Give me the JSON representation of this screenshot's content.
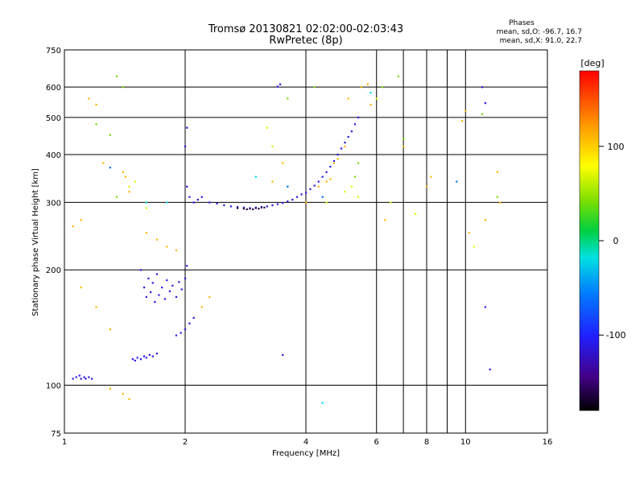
{
  "chart_data": {
    "type": "scatter",
    "title": "Tromsø 20130821 02:02:00-02:03:43",
    "subtitle": "RwPretec (8p)",
    "phase_stats": {
      "heading": "Phases",
      "line1": "mean, sd,O: -96.7, 16.7",
      "line2": "mean, sd,X:  91.0, 22.7"
    },
    "xlabel": "Frequency [MHz]",
    "ylabel": "Stationary phase Virtual Height [km]",
    "xscale": "log",
    "yscale": "log",
    "xlim": [
      1,
      16
    ],
    "ylim": [
      75,
      750
    ],
    "x_ticks": [
      1,
      2,
      4,
      6,
      8,
      10,
      16
    ],
    "x_tick_labels": [
      "1",
      "2",
      "4",
      "6",
      "8",
      "10",
      "16"
    ],
    "x_minor_ticks": [
      7,
      9
    ],
    "y_ticks": [
      75,
      100,
      200,
      300,
      400,
      500,
      600,
      750
    ],
    "y_tick_labels": [
      "75",
      "100",
      "200",
      "300",
      "400",
      "500",
      "600",
      "750"
    ],
    "grid": true,
    "colorbar": {
      "label": "[deg]",
      "min": -180,
      "max": 180,
      "ticks": [
        100,
        0,
        -100
      ],
      "tick_labels": [
        "100",
        "0",
        "-100"
      ]
    },
    "series": [
      {
        "color_deg": -110,
        "points": [
          [
            1.05,
            104
          ],
          [
            1.07,
            105
          ],
          [
            1.09,
            106
          ],
          [
            1.1,
            104
          ],
          [
            1.12,
            105
          ],
          [
            1.13,
            104
          ],
          [
            1.15,
            105
          ],
          [
            1.17,
            104
          ],
          [
            1.48,
            117
          ],
          [
            1.5,
            116
          ],
          [
            1.52,
            118
          ],
          [
            1.55,
            117
          ],
          [
            1.58,
            119
          ],
          [
            1.6,
            118
          ],
          [
            1.63,
            120
          ],
          [
            1.66,
            119
          ],
          [
            1.7,
            121
          ],
          [
            1.55,
            200
          ],
          [
            1.58,
            180
          ],
          [
            1.6,
            170
          ],
          [
            1.62,
            190
          ],
          [
            1.64,
            175
          ],
          [
            1.66,
            185
          ],
          [
            1.68,
            165
          ],
          [
            1.7,
            195
          ],
          [
            1.72,
            172
          ],
          [
            1.75,
            180
          ],
          [
            1.78,
            168
          ],
          [
            1.8,
            188
          ],
          [
            1.83,
            176
          ],
          [
            1.86,
            182
          ],
          [
            1.9,
            170
          ],
          [
            1.93,
            186
          ],
          [
            1.96,
            178
          ],
          [
            2.0,
            190
          ],
          [
            2.02,
            205
          ],
          [
            1.9,
            135
          ],
          [
            1.95,
            137
          ],
          [
            2.0,
            140
          ],
          [
            2.05,
            145
          ],
          [
            2.1,
            150
          ],
          [
            2.02,
            330
          ],
          [
            2.05,
            310
          ],
          [
            2.1,
            300
          ],
          [
            2.15,
            305
          ],
          [
            2.2,
            310
          ],
          [
            2.3,
            300
          ],
          [
            2.4,
            298
          ],
          [
            2.5,
            295
          ],
          [
            2.6,
            293
          ],
          [
            2.7,
            292
          ],
          [
            2.8,
            291
          ],
          [
            2.9,
            290
          ],
          [
            3.0,
            291
          ],
          [
            3.1,
            292
          ],
          [
            3.2,
            293
          ],
          [
            3.3,
            295
          ],
          [
            3.4,
            297
          ],
          [
            3.5,
            299
          ],
          [
            3.6,
            302
          ],
          [
            3.7,
            305
          ],
          [
            3.8,
            310
          ],
          [
            3.9,
            315
          ],
          [
            4.0,
            318
          ],
          [
            4.1,
            325
          ],
          [
            4.2,
            332
          ],
          [
            4.3,
            340
          ],
          [
            4.4,
            350
          ],
          [
            4.5,
            360
          ],
          [
            4.6,
            372
          ],
          [
            4.7,
            385
          ],
          [
            4.8,
            400
          ],
          [
            4.9,
            415
          ],
          [
            5.0,
            430
          ],
          [
            5.1,
            445
          ],
          [
            5.2,
            460
          ],
          [
            5.3,
            480
          ],
          [
            5.4,
            500
          ],
          [
            2.0,
            420
          ],
          [
            2.02,
            470
          ],
          [
            3.4,
            602
          ],
          [
            3.45,
            610
          ],
          [
            3.5,
            120
          ],
          [
            11.0,
            600
          ],
          [
            11.2,
            545
          ],
          [
            11.5,
            110
          ],
          [
            11.2,
            160
          ]
        ]
      },
      {
        "color_deg": -160,
        "points": [
          [
            2.7,
            290
          ],
          [
            2.8,
            289
          ],
          [
            2.85,
            288
          ],
          [
            2.9,
            289
          ],
          [
            2.95,
            288
          ],
          [
            3.0,
            290
          ],
          [
            3.05,
            289
          ],
          [
            3.1,
            291
          ],
          [
            3.15,
            291
          ]
        ]
      },
      {
        "color_deg": 110,
        "points": [
          [
            1.15,
            560
          ],
          [
            1.2,
            540
          ],
          [
            1.25,
            380
          ],
          [
            1.4,
            360
          ],
          [
            1.42,
            350
          ],
          [
            1.45,
            320
          ],
          [
            1.6,
            250
          ],
          [
            1.7,
            240
          ],
          [
            1.8,
            230
          ],
          [
            1.9,
            225
          ],
          [
            2.2,
            160
          ],
          [
            2.3,
            170
          ],
          [
            4.3,
            330
          ],
          [
            4.5,
            340
          ],
          [
            4.6,
            345
          ],
          [
            4.7,
            380
          ],
          [
            4.8,
            390
          ],
          [
            5.0,
            420
          ],
          [
            5.1,
            560
          ],
          [
            5.5,
            600
          ],
          [
            5.7,
            610
          ],
          [
            5.8,
            540
          ],
          [
            6.3,
            270
          ],
          [
            7.0,
            420
          ],
          [
            8.0,
            330
          ],
          [
            8.2,
            350
          ],
          [
            10.0,
            520
          ],
          [
            9.8,
            490
          ],
          [
            10.2,
            250
          ],
          [
            12.0,
            360
          ],
          [
            12.2,
            300
          ],
          [
            11.2,
            270
          ],
          [
            3.3,
            340
          ],
          [
            3.5,
            380
          ],
          [
            1.3,
            98
          ],
          [
            1.4,
            95
          ],
          [
            1.45,
            92
          ],
          [
            1.3,
            140
          ],
          [
            1.2,
            160
          ],
          [
            1.1,
            180
          ],
          [
            4.0,
            300
          ],
          [
            1.05,
            260
          ],
          [
            1.1,
            270
          ]
        ]
      },
      {
        "color_deg": 40,
        "points": [
          [
            1.35,
            640
          ],
          [
            1.4,
            600
          ],
          [
            1.6,
            300
          ],
          [
            5.3,
            350
          ],
          [
            5.4,
            380
          ],
          [
            6.8,
            640
          ],
          [
            7.0,
            440
          ],
          [
            12.0,
            310
          ],
          [
            4.2,
            600
          ],
          [
            6.2,
            600
          ],
          [
            1.2,
            480
          ],
          [
            1.35,
            310
          ],
          [
            11.0,
            510
          ],
          [
            1.3,
            450
          ],
          [
            3.6,
            560
          ]
        ]
      },
      {
        "color_deg": 70,
        "points": [
          [
            1.45,
            330
          ],
          [
            1.5,
            340
          ],
          [
            3.2,
            470
          ],
          [
            4.5,
            300
          ],
          [
            5.0,
            320
          ],
          [
            5.2,
            330
          ],
          [
            5.4,
            310
          ],
          [
            6.0,
            560
          ],
          [
            6.5,
            300
          ],
          [
            7.5,
            280
          ],
          [
            1.6,
            290
          ],
          [
            3.3,
            420
          ],
          [
            10.5,
            230
          ]
        ]
      },
      {
        "color_deg": -20,
        "points": [
          [
            1.6,
            300
          ],
          [
            4.4,
            90
          ],
          [
            3.6,
            330
          ],
          [
            3.0,
            350
          ],
          [
            5.8,
            580
          ],
          [
            1.8,
            300
          ]
        ]
      },
      {
        "color_deg": -60,
        "points": [
          [
            3.6,
            330
          ],
          [
            4.4,
            310
          ],
          [
            1.3,
            370
          ],
          [
            9.5,
            340
          ]
        ]
      }
    ]
  }
}
